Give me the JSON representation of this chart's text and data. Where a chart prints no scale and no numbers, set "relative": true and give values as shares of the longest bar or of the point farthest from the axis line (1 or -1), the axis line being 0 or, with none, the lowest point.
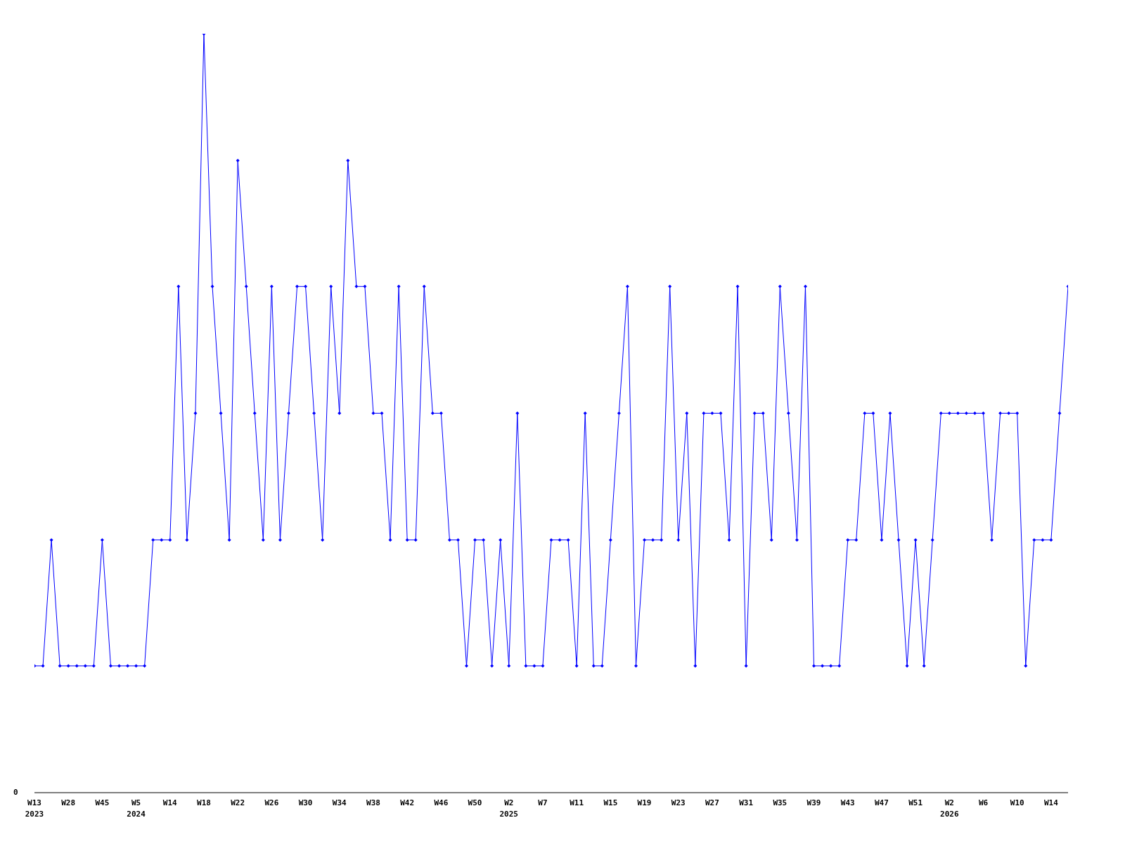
{
  "chart_data": {
    "type": "line",
    "relative": true,
    "marker": "diamond",
    "grid": false,
    "legend": false,
    "annotations": [
      "0"
    ],
    "categories": [
      "W13\n2023",
      null,
      null,
      null,
      "W28",
      null,
      null,
      null,
      "W45",
      null,
      null,
      null,
      "W5\n2024",
      null,
      null,
      null,
      "W14",
      null,
      null,
      null,
      "W18",
      null,
      null,
      null,
      "W22",
      null,
      null,
      null,
      "W26",
      null,
      null,
      null,
      "W30",
      null,
      null,
      null,
      "W34",
      null,
      null,
      null,
      "W38",
      null,
      null,
      null,
      "W42",
      null,
      null,
      null,
      "W46",
      null,
      null,
      null,
      "W50",
      null,
      null,
      null,
      "W2\n2025",
      null,
      null,
      null,
      "W7",
      null,
      null,
      null,
      "W11",
      null,
      null,
      null,
      "W15",
      null,
      null,
      null,
      "W19",
      null,
      null,
      null,
      "W23",
      null,
      null,
      null,
      "W27",
      null,
      null,
      null,
      "W31",
      null,
      null,
      null,
      "W35",
      null,
      null,
      null,
      "W39",
      null,
      null,
      null,
      "W43",
      null,
      null,
      null,
      "W47",
      null,
      null,
      null,
      "W51",
      null,
      null,
      null,
      "W2\n2026",
      null,
      null,
      null,
      "W6",
      null,
      null,
      null,
      "W10",
      null,
      null,
      null,
      "W14",
      null,
      null
    ],
    "series": [
      {
        "color": "#0000ff",
        "values": [
          0.167,
          0.167,
          0.333,
          0.167,
          0.167,
          0.167,
          0.167,
          0.167,
          0.333,
          0.167,
          0.167,
          0.167,
          0.167,
          0.167,
          0.333,
          0.333,
          0.333,
          0.667,
          0.333,
          0.5,
          1,
          0.667,
          0.5,
          0.333,
          0.833,
          0.667,
          0.5,
          0.333,
          0.667,
          0.333,
          0.5,
          0.667,
          0.667,
          0.5,
          0.333,
          0.667,
          0.5,
          0.833,
          0.667,
          0.667,
          0.5,
          0.5,
          0.333,
          0.667,
          0.333,
          0.333,
          0.667,
          0.5,
          0.5,
          0.333,
          0.333,
          0.167,
          0.333,
          0.333,
          0.167,
          0.333,
          0.167,
          0.5,
          0.167,
          0.167,
          0.167,
          0.333,
          0.333,
          0.333,
          0.167,
          0.5,
          0.167,
          0.167,
          0.333,
          0.5,
          0.667,
          0.167,
          0.333,
          0.333,
          0.333,
          0.667,
          0.333,
          0.5,
          0.167,
          0.5,
          0.5,
          0.5,
          0.333,
          0.667,
          0.167,
          0.5,
          0.5,
          0.333,
          0.667,
          0.5,
          0.333,
          0.667,
          0.167,
          0.167,
          0.167,
          0.167,
          0.333,
          0.333,
          0.5,
          0.5,
          0.333,
          0.5,
          0.333,
          0.167,
          0.333,
          0.167,
          0.333,
          0.5,
          0.5,
          0.5,
          0.5,
          0.5,
          0.5,
          0.333,
          0.5,
          0.5,
          0.5,
          0.167,
          0.333,
          0.333,
          0.333,
          0.5,
          0.667
        ]
      }
    ]
  }
}
